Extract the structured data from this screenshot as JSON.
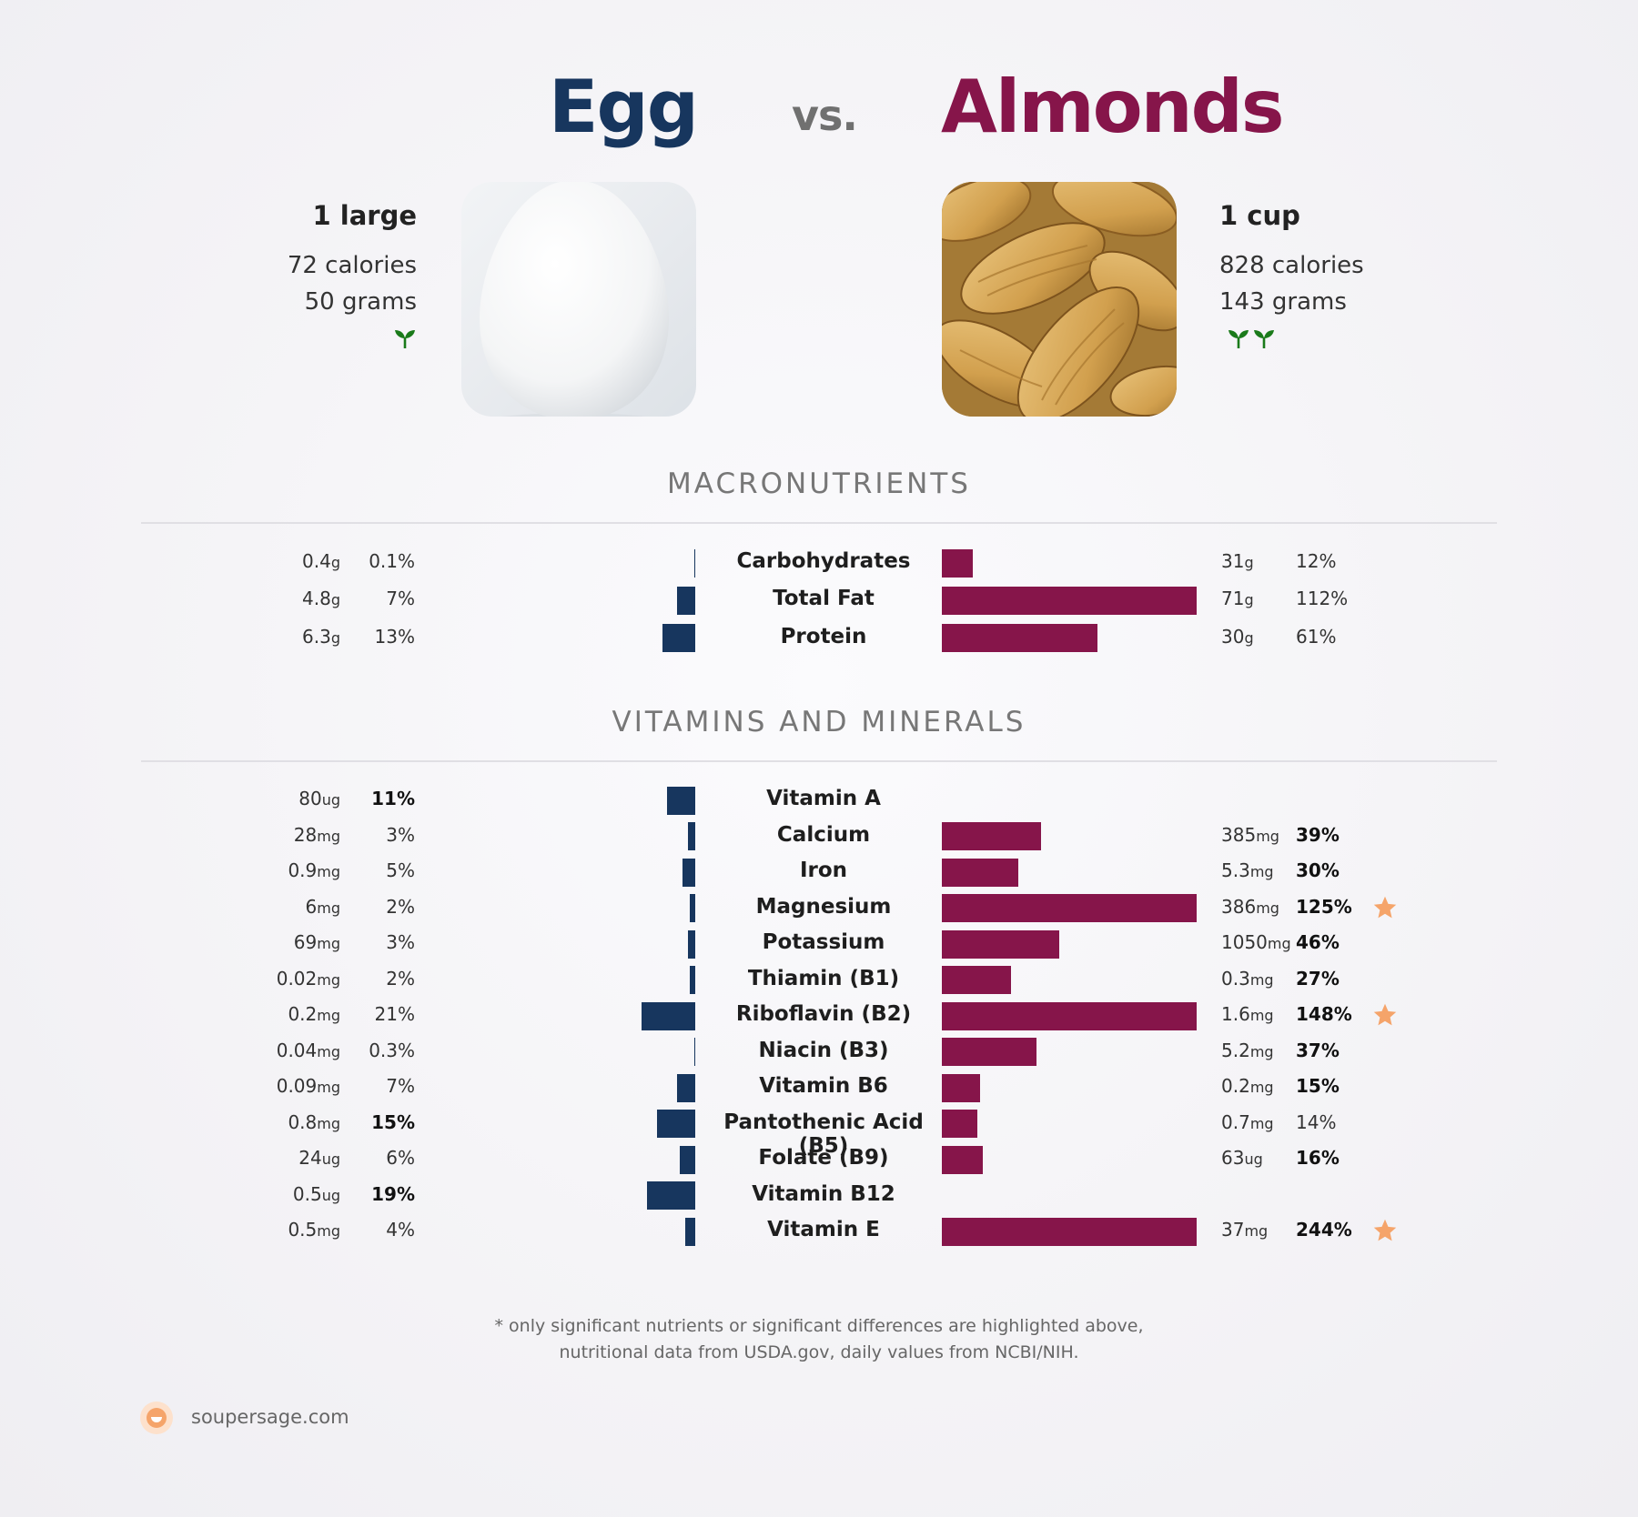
{
  "header": {
    "food1": "Egg",
    "vs": "vs.",
    "food2": "Almonds"
  },
  "food1": {
    "serving": "1 large",
    "calories": "72 calories",
    "grams": "50 grams",
    "sprouts": 1
  },
  "food2": {
    "serving": "1 cup",
    "calories": "828 calories",
    "grams": "143 grams",
    "sprouts": 2
  },
  "sections": {
    "macro": "MACRONUTRIENTS",
    "vitamins": "VITAMINS AND MINERALS"
  },
  "chart_data": [
    {
      "type": "bar",
      "title": "MACRONUTRIENTS",
      "orientation": "horizontal-diverging",
      "categories": [
        "Carbohydrates",
        "Total Fat",
        "Protein"
      ],
      "series": [
        {
          "name": "Egg",
          "values": [
            0.1,
            7,
            13
          ],
          "amounts": [
            "0.4",
            "4.8",
            "6.3"
          ],
          "units": [
            "g",
            "g",
            "g"
          ],
          "bold": [
            false,
            false,
            false
          ],
          "color": "#17365e"
        },
        {
          "name": "Almonds",
          "values": [
            12,
            112,
            61
          ],
          "amounts": [
            "31",
            "71",
            "30"
          ],
          "units": [
            "g",
            "g",
            "g"
          ],
          "bold": [
            false,
            false,
            false
          ],
          "color": "#86154a"
        }
      ],
      "xlim": [
        0,
        100
      ]
    },
    {
      "type": "bar",
      "title": "VITAMINS AND MINERALS",
      "orientation": "horizontal-diverging",
      "categories": [
        "Vitamin A",
        "Calcium",
        "Iron",
        "Magnesium",
        "Potassium",
        "Thiamin (B1)",
        "Riboflavin (B2)",
        "Niacin (B3)",
        "Vitamin B6",
        "Pantothenic Acid (B5)",
        "Folate (B9)",
        "Vitamin B12",
        "Vitamin E"
      ],
      "series": [
        {
          "name": "Egg",
          "values": [
            11,
            3,
            5,
            2,
            3,
            2,
            21,
            0.3,
            7,
            15,
            6,
            19,
            4
          ],
          "amounts": [
            "80",
            "28",
            "0.9",
            "6",
            "69",
            "0.02",
            "0.2",
            "0.04",
            "0.09",
            "0.8",
            "24",
            "0.5",
            "0.5"
          ],
          "units": [
            "ug",
            "mg",
            "mg",
            "mg",
            "mg",
            "mg",
            "mg",
            "mg",
            "mg",
            "mg",
            "ug",
            "ug",
            "mg"
          ],
          "bold": [
            true,
            false,
            false,
            false,
            false,
            false,
            false,
            false,
            false,
            true,
            false,
            true,
            false
          ],
          "color": "#17365e"
        },
        {
          "name": "Almonds",
          "values": [
            null,
            39,
            30,
            125,
            46,
            27,
            148,
            37,
            15,
            14,
            16,
            null,
            244
          ],
          "amounts": [
            "",
            "385",
            "5.3",
            "386",
            "1050",
            "0.3",
            "1.6",
            "5.2",
            "0.2",
            "0.7",
            "63",
            "",
            "37"
          ],
          "units": [
            "",
            "mg",
            "mg",
            "mg",
            "mg",
            "mg",
            "mg",
            "mg",
            "mg",
            "mg",
            "ug",
            "",
            "mg"
          ],
          "bold": [
            false,
            true,
            true,
            true,
            true,
            true,
            true,
            true,
            true,
            false,
            true,
            false,
            true
          ],
          "stars": [
            false,
            false,
            false,
            true,
            false,
            false,
            true,
            false,
            false,
            false,
            false,
            false,
            true
          ],
          "color": "#86154a"
        }
      ],
      "xlim": [
        0,
        100
      ]
    }
  ],
  "footnote": {
    "line1": "* only significant nutrients or significant differences are highlighted above,",
    "line2": "nutritional data from USDA.gov, daily values from NCBI/NIH."
  },
  "brand": {
    "text": "soupersage.com"
  },
  "icons": {
    "sprout": "sprout-icon",
    "star": "star-icon",
    "logo": "soupersage-logo-icon"
  },
  "colors": {
    "egg": "#17365e",
    "almonds": "#86154a",
    "star": "#f5a46a",
    "sprout": "#1a7a1a"
  }
}
